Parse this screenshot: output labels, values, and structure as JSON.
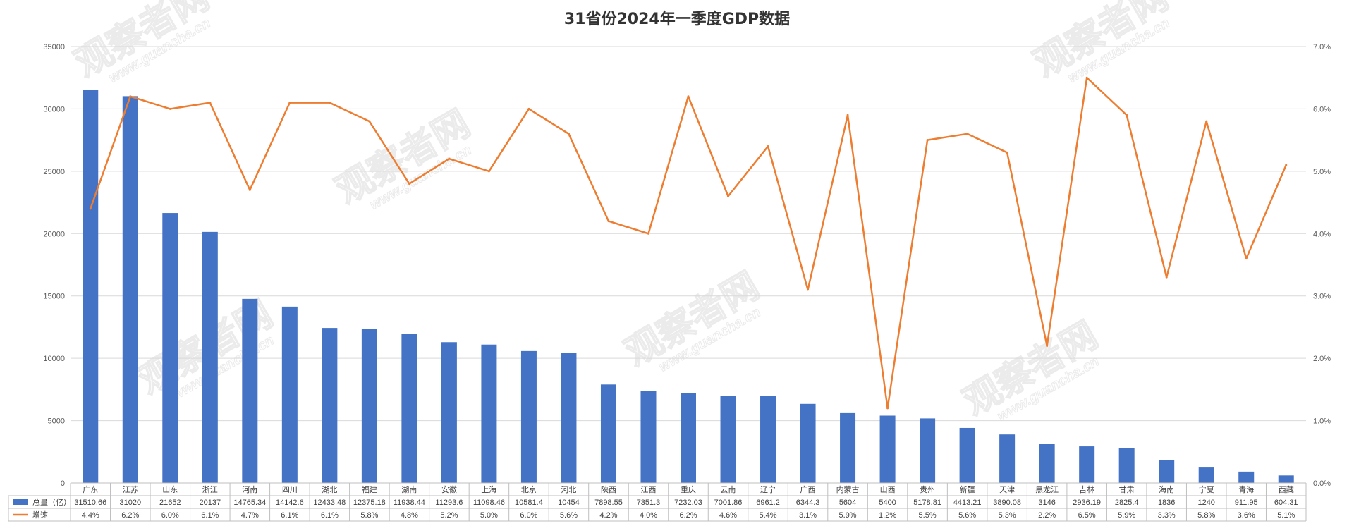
{
  "watermark": {
    "main": "观察者网",
    "sub": "www.guancha.cn"
  },
  "colors": {
    "bar": "#4472C4",
    "line": "#ED7D31",
    "grid": "#D9D9D9",
    "table_border": "#BFBFBF"
  },
  "chart_data": {
    "type": "bar",
    "title": "31省份2024年一季度GDP数据",
    "categories": [
      "广东",
      "江苏",
      "山东",
      "浙江",
      "河南",
      "四川",
      "湖北",
      "福建",
      "湖南",
      "安徽",
      "上海",
      "北京",
      "河北",
      "陕西",
      "江西",
      "重庆",
      "云南",
      "辽宁",
      "广西",
      "内蒙古",
      "山西",
      "贵州",
      "新疆",
      "天津",
      "黑龙江",
      "吉林",
      "甘肃",
      "海南",
      "宁夏",
      "青海",
      "西藏"
    ],
    "series": [
      {
        "name": "总量（亿）",
        "type": "bar",
        "axis": "left",
        "values": [
          31510.66,
          31020,
          21652,
          20137,
          14765.34,
          14142.6,
          12433.48,
          12375.18,
          11938.44,
          11293.6,
          11098.46,
          10581.4,
          10454,
          7898.55,
          7351.3,
          7232.03,
          7001.86,
          6961.2,
          6344.3,
          5604,
          5400,
          5178.81,
          4413.21,
          3890.08,
          3146,
          2936.19,
          2825.4,
          1836,
          1240,
          911.95,
          604.31
        ],
        "labels": [
          "31510.66",
          "31020",
          "21652",
          "20137",
          "14765.34",
          "14142.6",
          "12433.48",
          "12375.18",
          "11938.44",
          "11293.6",
          "11098.46",
          "10581.4",
          "10454",
          "7898.55",
          "7351.3",
          "7232.03",
          "7001.86",
          "6961.2",
          "6344.3",
          "5604",
          "5400",
          "5178.81",
          "4413.21",
          "3890.08",
          "3146",
          "2936.19",
          "2825.4",
          "1836",
          "1240",
          "911.95",
          "604.31"
        ]
      },
      {
        "name": "增速",
        "type": "line",
        "axis": "right",
        "values": [
          4.4,
          6.2,
          6.0,
          6.1,
          4.7,
          6.1,
          6.1,
          5.8,
          4.8,
          5.2,
          5.0,
          6.0,
          5.6,
          4.2,
          4.0,
          6.2,
          4.6,
          5.4,
          3.1,
          5.9,
          1.2,
          5.5,
          5.6,
          5.3,
          2.2,
          6.5,
          5.9,
          3.3,
          5.8,
          3.6,
          5.1
        ],
        "labels": [
          "4.4%",
          "6.2%",
          "6.0%",
          "6.1%",
          "4.7%",
          "6.1%",
          "6.1%",
          "5.8%",
          "4.8%",
          "5.2%",
          "5.0%",
          "6.0%",
          "5.6%",
          "4.2%",
          "4.0%",
          "6.2%",
          "4.6%",
          "5.4%",
          "3.1%",
          "5.9%",
          "1.2%",
          "5.5%",
          "5.6%",
          "5.3%",
          "2.2%",
          "6.5%",
          "5.9%",
          "3.3%",
          "5.8%",
          "3.6%",
          "5.1%"
        ]
      }
    ],
    "y_left": {
      "min": 0,
      "max": 35000,
      "ticks": [
        "0",
        "5000",
        "10000",
        "15000",
        "20000",
        "25000",
        "30000",
        "35000"
      ]
    },
    "y_right": {
      "min": 0,
      "max": 7,
      "ticks": [
        "0.0%",
        "1.0%",
        "2.0%",
        "3.0%",
        "4.0%",
        "5.0%",
        "6.0%",
        "7.0%"
      ]
    },
    "grid": true,
    "legend": "data-table-bottom"
  }
}
